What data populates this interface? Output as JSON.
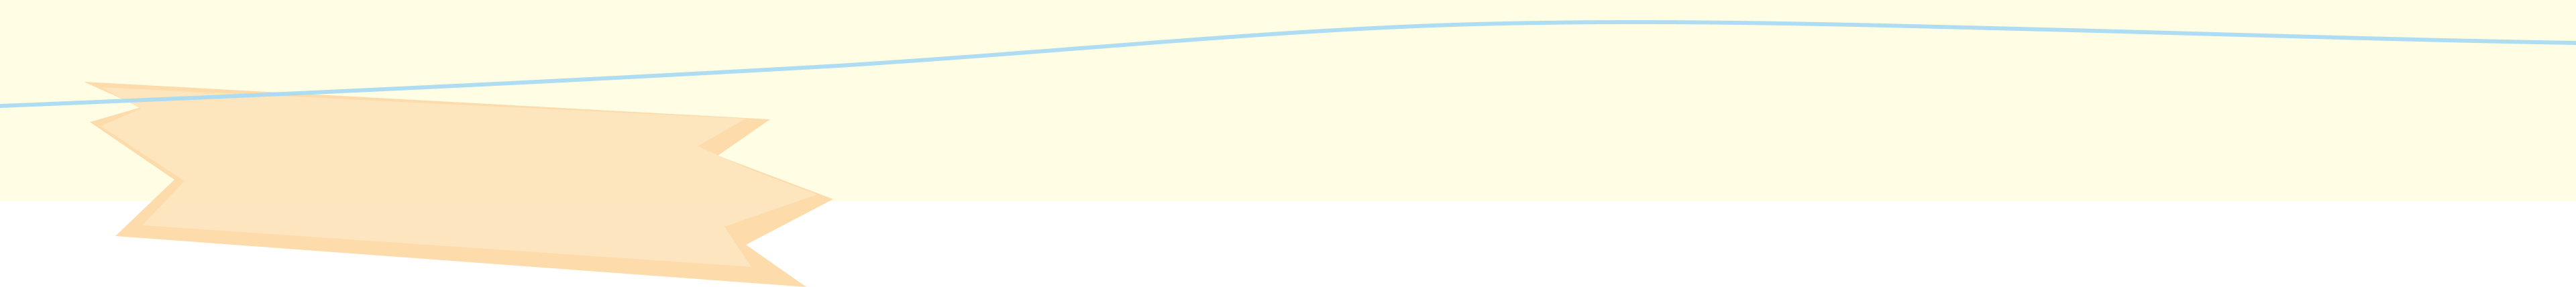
{
  "colors": {
    "band": "#fffde3",
    "paper_main": "#fde4bf",
    "paper_shadow": "#fdd9a7",
    "wave_line": "#a9daf3",
    "page_bg": "#ffffff"
  },
  "icons": {
    "paper_shape": "torn-paper-strip-icon",
    "wave": "wavy-line-icon"
  }
}
